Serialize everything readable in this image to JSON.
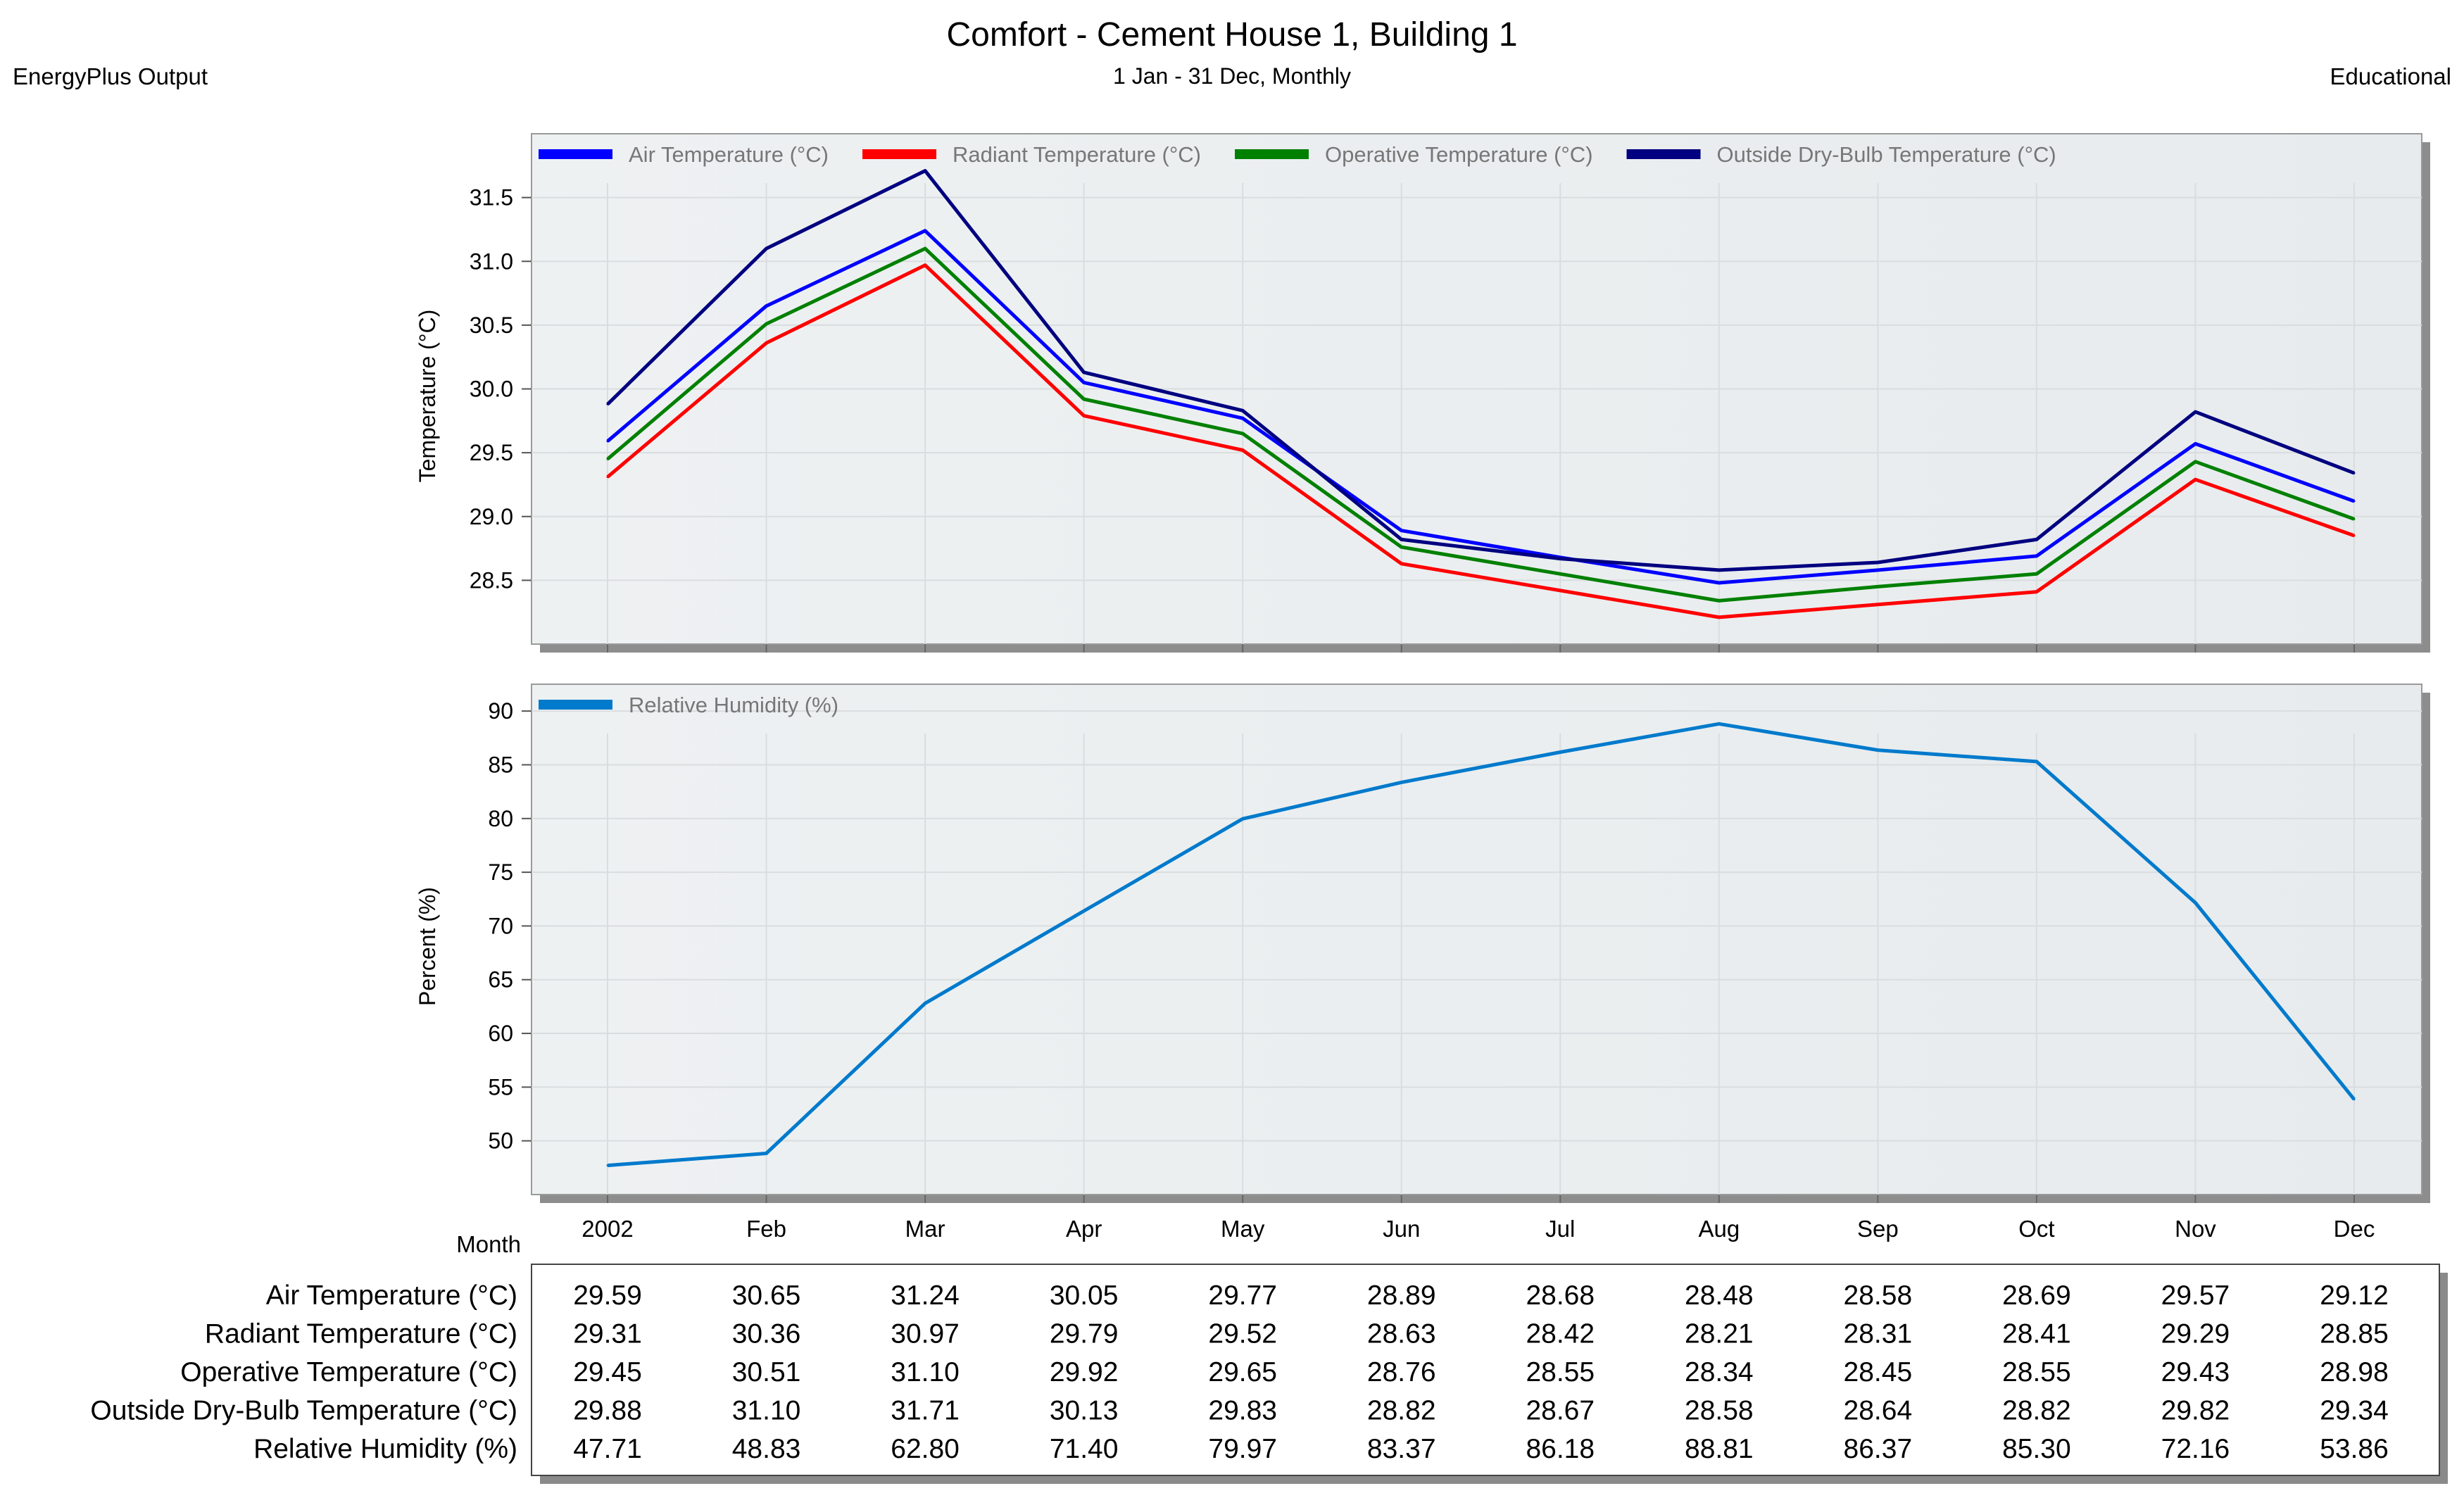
{
  "header": {
    "title": "Comfort - Cement House 1, Building 1",
    "subtitle": "1 Jan - 31 Dec, Monthly",
    "left_note": "EnergyPlus Output",
    "right_note": "Educational"
  },
  "chart_data": [
    {
      "type": "line",
      "ylabel": "Temperature (°C)",
      "ylim": [
        28.0,
        32.0
      ],
      "yticks": [
        "31.5",
        "31.0",
        "30.5",
        "30.0",
        "29.5",
        "29.0",
        "28.5"
      ],
      "grid": true,
      "legend": "top-left",
      "categories": [
        "2002",
        "Feb",
        "Mar",
        "Apr",
        "May",
        "Jun",
        "Jul",
        "Aug",
        "Sep",
        "Oct",
        "Nov",
        "Dec"
      ],
      "series": [
        {
          "name": "Air Temperature (°C)",
          "color": "#0000ff",
          "values": [
            29.59,
            30.65,
            31.24,
            30.05,
            29.77,
            28.89,
            28.68,
            28.48,
            28.58,
            28.69,
            29.57,
            29.12
          ]
        },
        {
          "name": "Radiant Temperature (°C)",
          "color": "#ff0000",
          "values": [
            29.31,
            30.36,
            30.97,
            29.79,
            29.52,
            28.63,
            28.42,
            28.21,
            28.31,
            28.41,
            29.29,
            28.85
          ]
        },
        {
          "name": "Operative Temperature (°C)",
          "color": "#008000",
          "values": [
            29.45,
            30.51,
            31.1,
            29.92,
            29.65,
            28.76,
            28.55,
            28.34,
            28.45,
            28.55,
            29.43,
            28.98
          ]
        },
        {
          "name": "Outside Dry-Bulb Temperature (°C)",
          "color": "#000080",
          "values": [
            29.88,
            31.1,
            31.71,
            30.13,
            29.83,
            28.82,
            28.67,
            28.58,
            28.64,
            28.82,
            29.82,
            29.34
          ]
        }
      ]
    },
    {
      "type": "line",
      "ylabel": "Percent (%)",
      "ylim": [
        45,
        92.5
      ],
      "yticks": [
        "90",
        "85",
        "80",
        "75",
        "70",
        "65",
        "60",
        "55",
        "50"
      ],
      "grid": true,
      "legend": "top-left",
      "xlabel": "Month",
      "categories": [
        "2002",
        "Feb",
        "Mar",
        "Apr",
        "May",
        "Jun",
        "Jul",
        "Aug",
        "Sep",
        "Oct",
        "Nov",
        "Dec"
      ],
      "series": [
        {
          "name": "Relative Humidity (%)",
          "color": "#007acc",
          "values": [
            47.71,
            48.83,
            62.8,
            71.4,
            79.97,
            83.37,
            86.18,
            88.81,
            86.37,
            85.3,
            72.16,
            53.86
          ]
        }
      ]
    },
    {
      "type": "table",
      "rows": [
        {
          "label": "Air Temperature (°C)",
          "values": [
            "29.59",
            "30.65",
            "31.24",
            "30.05",
            "29.77",
            "28.89",
            "28.68",
            "28.48",
            "28.58",
            "28.69",
            "29.57",
            "29.12"
          ]
        },
        {
          "label": "Radiant Temperature (°C)",
          "values": [
            "29.31",
            "30.36",
            "30.97",
            "29.79",
            "29.52",
            "28.63",
            "28.42",
            "28.21",
            "28.31",
            "28.41",
            "29.29",
            "28.85"
          ]
        },
        {
          "label": "Operative Temperature (°C)",
          "values": [
            "29.45",
            "30.51",
            "31.10",
            "29.92",
            "29.65",
            "28.76",
            "28.55",
            "28.34",
            "28.45",
            "28.55",
            "29.43",
            "28.98"
          ]
        },
        {
          "label": "Outside Dry-Bulb Temperature (°C)",
          "values": [
            "29.88",
            "31.10",
            "31.71",
            "30.13",
            "29.83",
            "28.82",
            "28.67",
            "28.58",
            "28.64",
            "28.82",
            "29.82",
            "29.34"
          ]
        },
        {
          "label": "Relative Humidity (%)",
          "values": [
            "47.71",
            "48.83",
            "62.80",
            "71.40",
            "79.97",
            "83.37",
            "86.18",
            "88.81",
            "86.37",
            "85.30",
            "72.16",
            "53.86"
          ]
        }
      ]
    }
  ]
}
